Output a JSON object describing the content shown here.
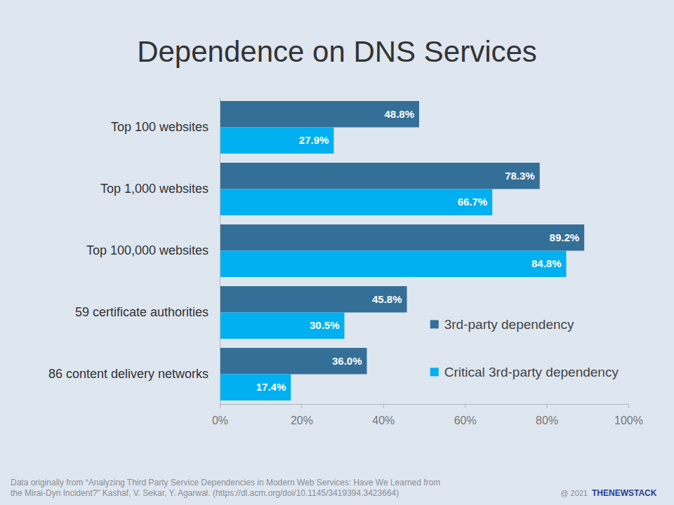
{
  "chart_data": {
    "type": "bar",
    "orientation": "horizontal",
    "title": "Dependence on DNS Services",
    "categories": [
      "Top 100 websites",
      "Top 1,000 websites",
      "Top 100,000 websites",
      "59 certificate authorities",
      "86 content delivery networks"
    ],
    "series": [
      {
        "name": "3rd-party dependency",
        "color": "#346f98",
        "values": [
          48.8,
          78.3,
          89.2,
          45.8,
          36.0
        ],
        "value_labels": [
          "48.8%",
          "78.3%",
          "89.2%",
          "45.8%",
          "36.0%"
        ]
      },
      {
        "name": "Critical 3rd-party dependency",
        "color": "#00b0f0",
        "values": [
          27.9,
          66.7,
          84.8,
          30.5,
          17.4
        ],
        "value_labels": [
          "27.9%",
          "66.7%",
          "84.8%",
          "30.5%",
          "17.4%"
        ]
      }
    ],
    "xlim": [
      0,
      100
    ],
    "xticks": [
      {
        "value": 0,
        "label": "0%"
      },
      {
        "value": 20,
        "label": "20%"
      },
      {
        "value": 40,
        "label": "40%"
      },
      {
        "value": 60,
        "label": "60%"
      },
      {
        "value": 80,
        "label": "80%"
      },
      {
        "value": 100,
        "label": "100%"
      }
    ],
    "grid": false,
    "legend": "right",
    "data_labels": true,
    "annotations": [
      "Data originally from “Analyzing Third Party Service Dependencies in Modern Web Services: Have We Learned from",
      "the Mirai-Dyn Incident?”  Kashaf, V. Sekar, Y. Agarwal. (https://dl.acm.org/doi/10.1145/3419394.3423664)",
      "@ 2021",
      "THENEWSTACK"
    ]
  }
}
